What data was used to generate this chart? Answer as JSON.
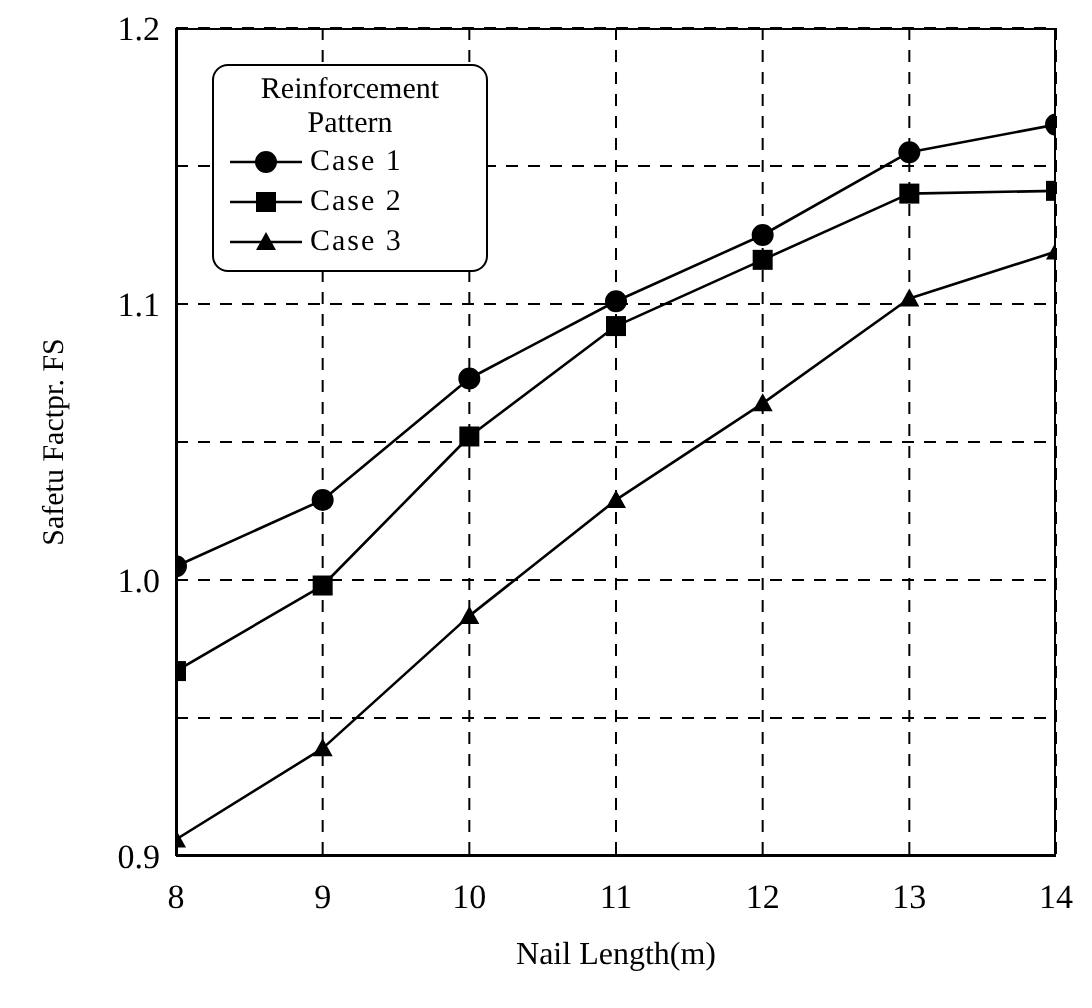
{
  "chart_data": {
    "type": "line",
    "xlabel": "Nail Length(m)",
    "ylabel": "Safetu Factpr. FS",
    "legend_title": "Reinforcement Pattern",
    "x": [
      8,
      9,
      10,
      11,
      12,
      13,
      14
    ],
    "series": [
      {
        "name": "Case 1",
        "color": "#000000",
        "marker": "circle",
        "values": [
          1.005,
          1.029,
          1.073,
          1.101,
          1.125,
          1.155,
          1.165
        ]
      },
      {
        "name": "Case 2",
        "color": "#000000",
        "marker": "square",
        "values": [
          0.967,
          0.998,
          1.052,
          1.092,
          1.116,
          1.14,
          1.141
        ]
      },
      {
        "name": "Case 3",
        "color": "#000000",
        "marker": "triangle",
        "values": [
          0.906,
          0.939,
          0.987,
          1.029,
          1.064,
          1.102,
          1.119
        ]
      }
    ],
    "xlim": [
      8,
      14
    ],
    "xticks": [
      8,
      9,
      10,
      11,
      12,
      13,
      14
    ],
    "ylim": [
      0.9,
      1.2
    ],
    "yticks": [
      {
        "value": 0.9,
        "label": "0.9"
      },
      {
        "value": 0.95,
        "label": null
      },
      {
        "value": 1.0,
        "label": "1.0"
      },
      {
        "value": 1.05,
        "label": null
      },
      {
        "value": 1.1,
        "label": "1.1"
      },
      {
        "value": 1.15,
        "label": null
      },
      {
        "value": 1.2,
        "label": "1.2"
      }
    ],
    "grid": true,
    "legend": "top left",
    "line_style": "solid"
  }
}
